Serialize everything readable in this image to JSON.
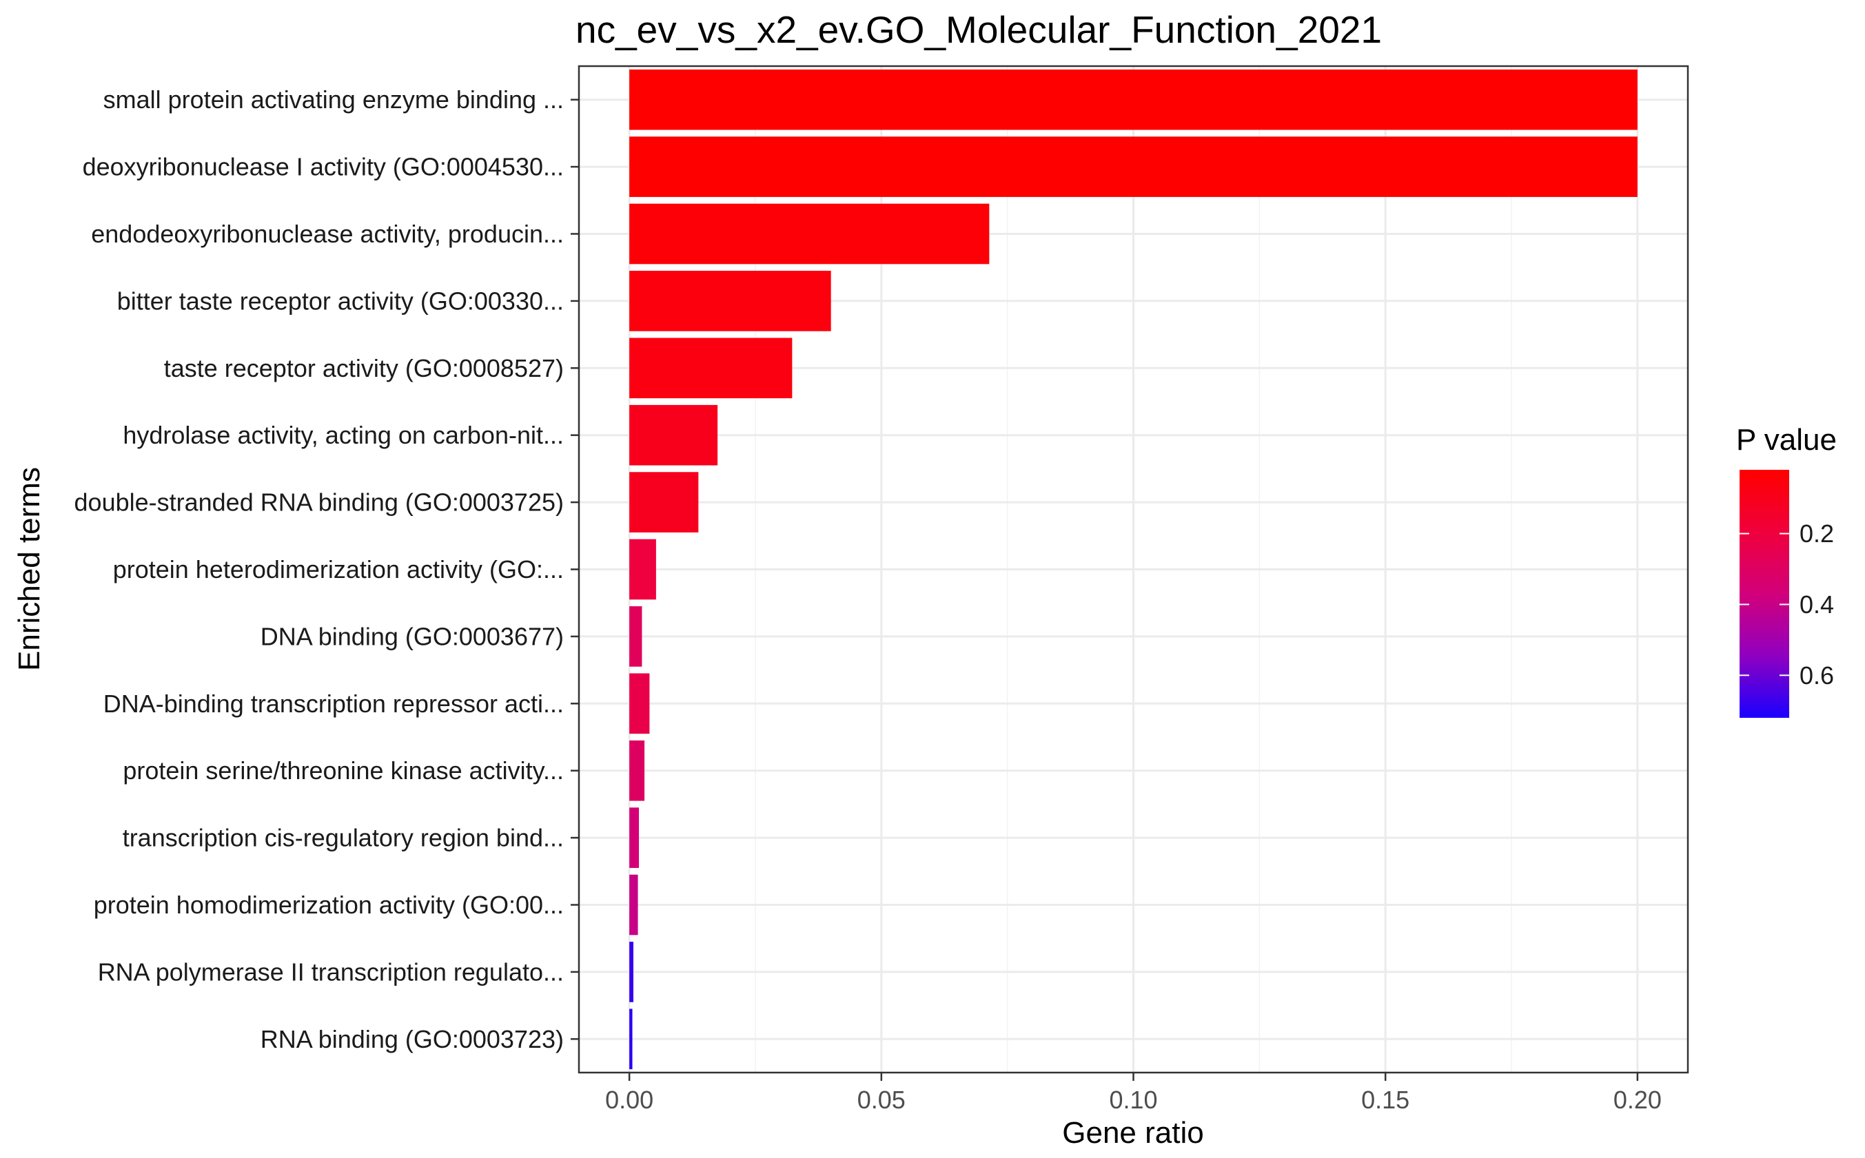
{
  "chart_data": {
    "type": "bar",
    "orientation": "horizontal",
    "title": "nc_ev_vs_x2_ev.GO_Molecular_Function_2021",
    "xlabel": "Gene ratio",
    "ylabel": "Enriched terms",
    "xlim": [
      -0.01,
      0.21
    ],
    "x_ticks": [
      "0.00",
      "0.05",
      "0.10",
      "0.15",
      "0.20"
    ],
    "x_tick_values": [
      0,
      0.05,
      0.1,
      0.15,
      0.2
    ],
    "grid": true,
    "categories": [
      "small protein activating enzyme binding ...",
      "deoxyribonuclease I activity (GO:0004530...",
      "endodeoxyribonuclease activity, producin...",
      "bitter taste receptor activity (GO:00330...",
      "taste receptor activity (GO:0008527)",
      "hydrolase activity, acting on carbon-nit...",
      "double-stranded RNA binding (GO:0003725)",
      "protein heterodimerization activity (GO:...",
      "DNA binding (GO:0003677)",
      "DNA-binding transcription repressor acti...",
      "protein serine/threonine kinase activity...",
      "transcription cis-regulatory region bind...",
      "protein homodimerization activity (GO:00...",
      "RNA polymerase II transcription regulato...",
      "RNA binding (GO:0003723)"
    ],
    "values": [
      0.2,
      0.2,
      0.0714,
      0.04,
      0.0323,
      0.0175,
      0.0137,
      0.0053,
      0.0025,
      0.004,
      0.003,
      0.0019,
      0.0017,
      0.0008,
      0.0006
    ],
    "p_values": [
      0.02,
      0.02,
      0.04,
      0.06,
      0.07,
      0.1,
      0.11,
      0.2,
      0.28,
      0.23,
      0.3,
      0.36,
      0.4,
      0.68,
      0.7
    ],
    "legend": {
      "title": "P value",
      "position": "right",
      "ticks": [
        "0.2",
        "0.4",
        "0.6"
      ],
      "tick_values": [
        0.2,
        0.4,
        0.6
      ],
      "range": [
        0.02,
        0.72
      ],
      "low_color": "#ff0000",
      "high_color": "#0000ff"
    },
    "colors": {
      "panel_border": "#333333",
      "grid": "#ebebeb"
    }
  }
}
